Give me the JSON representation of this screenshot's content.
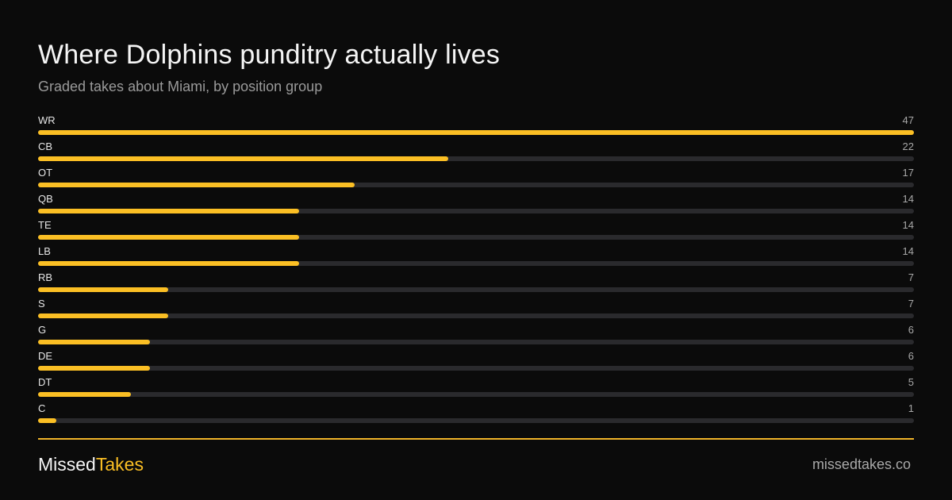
{
  "header": {
    "title": "Where Dolphins punditry actually lives",
    "subtitle": "Graded takes about Miami, by position group"
  },
  "footer": {
    "brand_part1": "Missed",
    "brand_part2": "Takes",
    "site": "missedtakes.co"
  },
  "colors": {
    "background": "#0b0b0b",
    "accent": "#fbbf24",
    "track": "#2a2a2d"
  },
  "chart_data": {
    "type": "bar",
    "orientation": "horizontal",
    "title": "Where Dolphins punditry actually lives",
    "subtitle": "Graded takes about Miami, by position group",
    "categories": [
      "WR",
      "CB",
      "OT",
      "QB",
      "TE",
      "LB",
      "RB",
      "S",
      "G",
      "DE",
      "DT",
      "C"
    ],
    "values": [
      47,
      22,
      17,
      14,
      14,
      14,
      7,
      7,
      6,
      6,
      5,
      1
    ],
    "xlim": [
      0,
      47
    ],
    "grid": false,
    "legend": "none"
  }
}
